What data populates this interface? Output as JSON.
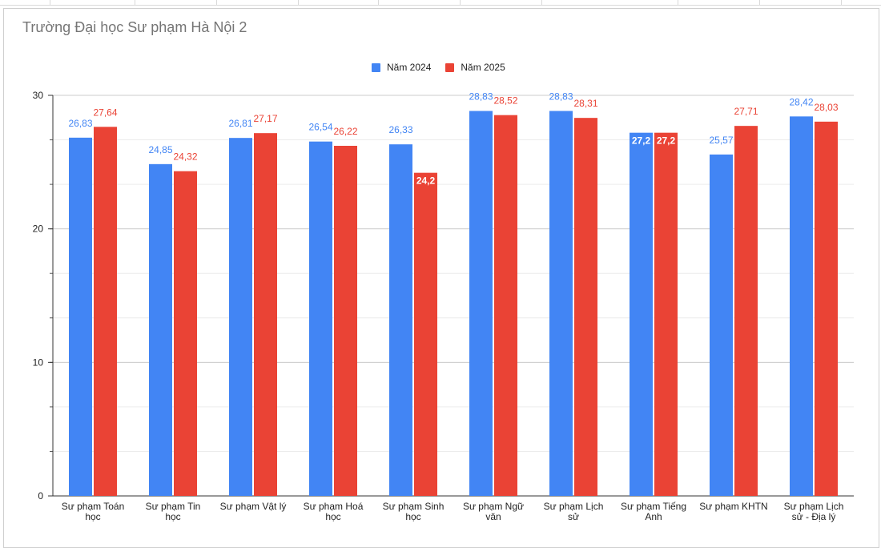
{
  "chart_data": {
    "type": "bar",
    "title": "Trường Đại học Sư phạm Hà Nội 2",
    "xlabel": "",
    "ylabel": "",
    "ylim": [
      0,
      30
    ],
    "yticks": [
      0,
      10,
      20,
      30
    ],
    "grid": true,
    "legend_position": "top",
    "categories": [
      [
        "Sư phạm Toán",
        "học"
      ],
      [
        "Sư phạm Tin",
        "học"
      ],
      [
        "Sư phạm Vật lý"
      ],
      [
        "Sư phạm Hoá",
        "học"
      ],
      [
        "Sư phạm Sinh",
        "học"
      ],
      [
        "Sư phạm Ngữ",
        "văn"
      ],
      [
        "Sư phạm Lịch",
        "sử"
      ],
      [
        "Sư phạm Tiếng",
        "Anh"
      ],
      [
        "Sư phạm KHTN"
      ],
      [
        "Sư phạm Lịch",
        "sử - Địa lý"
      ]
    ],
    "series": [
      {
        "name": "Năm 2024",
        "color": "#4285f4",
        "values": [
          26.83,
          24.85,
          26.81,
          26.54,
          26.33,
          28.83,
          28.83,
          27.2,
          25.57,
          28.42
        ],
        "labels": [
          "26,83",
          "24,85",
          "26,81",
          "26,54",
          "26,33",
          "28,83",
          "28,83",
          "27,2",
          "25,57",
          "28,42"
        ]
      },
      {
        "name": "Năm 2025",
        "color": "#ea4335",
        "values": [
          27.64,
          24.32,
          27.17,
          26.22,
          24.2,
          28.52,
          28.31,
          27.2,
          27.71,
          28.03
        ],
        "labels": [
          "27,64",
          "24,32",
          "27,17",
          "26,22",
          "24,2",
          "28,52",
          "28,31",
          "27,2",
          "27,71",
          "28,03"
        ]
      }
    ]
  }
}
